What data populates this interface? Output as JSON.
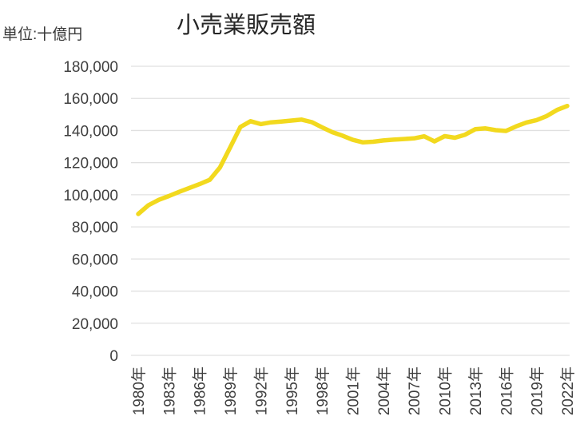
{
  "chart_data": {
    "type": "line",
    "title": "小売業販売額",
    "unit": "単位:十億円",
    "legend": false,
    "grid": true,
    "line_color": "#F2D91E",
    "grid_color": "#E0E0E0",
    "label_color": "#3F3F3F",
    "title_color": "#262626",
    "ylim": [
      0,
      180000
    ],
    "y_ticks": [
      0,
      20000,
      40000,
      60000,
      80000,
      100000,
      120000,
      140000,
      160000,
      180000
    ],
    "y_tick_labels": [
      "0",
      "20,000",
      "40,000",
      "60,000",
      "80,000",
      "100,000",
      "120,000",
      "140,000",
      "160,000",
      "180,000"
    ],
    "x_tick_years": [
      1980,
      1983,
      1986,
      1989,
      1992,
      1995,
      1998,
      2001,
      2004,
      2007,
      2010,
      2013,
      2016,
      2019,
      2022
    ],
    "x_tick_labels": [
      "1980年",
      "1983年",
      "1986年",
      "1989年",
      "1992年",
      "1995年",
      "1998年",
      "2001年",
      "2004年",
      "2007年",
      "2010年",
      "2013年",
      "2016年",
      "2019年",
      "2022年"
    ],
    "x": [
      1980,
      1981,
      1982,
      1983,
      1984,
      1985,
      1986,
      1987,
      1988,
      1989,
      1990,
      1991,
      1992,
      1993,
      1994,
      1995,
      1996,
      1997,
      1998,
      1999,
      2000,
      2001,
      2002,
      2003,
      2004,
      2005,
      2006,
      2007,
      2008,
      2009,
      2010,
      2011,
      2012,
      2013,
      2014,
      2015,
      2016,
      2017,
      2018,
      2019,
      2020,
      2021,
      2022
    ],
    "values": [
      88000,
      93500,
      96800,
      99200,
      101800,
      104200,
      106600,
      109300,
      117000,
      129500,
      142200,
      145800,
      144000,
      145100,
      145600,
      146200,
      146800,
      145200,
      142000,
      139000,
      136800,
      134200,
      132600,
      133000,
      133800,
      134300,
      134700,
      135100,
      136400,
      133200,
      136500,
      135500,
      137400,
      140800,
      141300,
      140200,
      139700,
      142600,
      145000,
      146500,
      149000,
      152800,
      155300
    ]
  }
}
